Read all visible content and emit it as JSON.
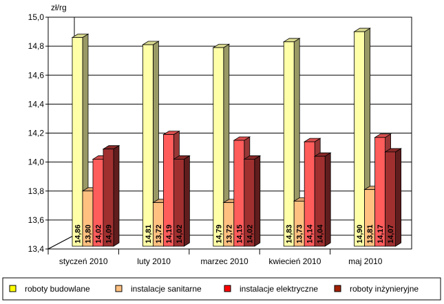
{
  "chart_data": {
    "type": "bar",
    "title": "",
    "ylabel": "zł/rg",
    "xlabel": "",
    "ylim": [
      13.4,
      15.0
    ],
    "yticks": [
      "13,4",
      "13,6",
      "13,8",
      "14,0",
      "14,2",
      "14,4",
      "14,6",
      "14,8",
      "15,0"
    ],
    "categories": [
      "styczeń 2010",
      "luty 2010",
      "marzec 2010",
      "kwiecień 2010",
      "maj 2010"
    ],
    "series": [
      {
        "name": "roboty budowlane",
        "color": "#ffffa8",
        "values": [
          14.86,
          14.81,
          14.79,
          14.83,
          14.9
        ],
        "labels": [
          "14,86",
          "14,81",
          "14,79",
          "14,83",
          "14,90"
        ]
      },
      {
        "name": "instalacje sanitarne",
        "color": "#ffc080",
        "values": [
          13.8,
          13.72,
          13.72,
          13.73,
          13.81
        ],
        "labels": [
          "13,80",
          "13,72",
          "13,72",
          "13,73",
          "13,81"
        ]
      },
      {
        "name": "instalacje elektryczne",
        "color": "#ff5c5c",
        "values": [
          14.02,
          14.19,
          14.15,
          14.14,
          14.17
        ],
        "labels": [
          "14,02",
          "14,19",
          "14,15",
          "14,14",
          "14,17"
        ]
      },
      {
        "name": "roboty inżynieryjne",
        "color": "#a03030",
        "values": [
          14.09,
          14.02,
          14.02,
          14.04,
          14.07
        ],
        "labels": [
          "14,09",
          "14,02",
          "14,02",
          "14,04",
          "14,07"
        ]
      }
    ],
    "legend_position": "bottom",
    "grid": true
  }
}
